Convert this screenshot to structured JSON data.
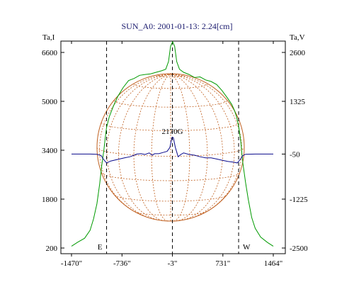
{
  "chart_data": {
    "type": "line",
    "title": "SUN_A0: 2001-01-13: 2.24[cm]",
    "left_axis_label": "Ta,I",
    "right_axis_label": "Ta,V",
    "left_axis": {
      "ticks": [
        200,
        1800,
        3400,
        5000,
        6600
      ],
      "range": [
        200,
        6600
      ]
    },
    "right_axis": {
      "ticks": [
        -2500,
        -1225,
        -50,
        1325,
        2600
      ],
      "range": [
        -2500,
        2600
      ]
    },
    "x_axis": {
      "ticks": [
        "-1470\"",
        "-736\"",
        "-3\"",
        "731\"",
        "1464\""
      ],
      "range": [
        -1470,
        1464
      ]
    },
    "limb_markers": [
      {
        "x": -960,
        "label": "E"
      },
      {
        "x": 960,
        "label": "W"
      }
    ],
    "annotation": {
      "text": "2170G",
      "x": -3
    },
    "colors": {
      "intensity": "#009a00",
      "polarization": "#0a0a8c",
      "grid": "#c06020",
      "title": "#1a1a6e"
    },
    "series": [
      {
        "axis": "left",
        "points": [
          [
            -1470,
            260
          ],
          [
            -1380,
            390
          ],
          [
            -1280,
            520
          ],
          [
            -1200,
            780
          ],
          [
            -1150,
            1150
          ],
          [
            -1100,
            1650
          ],
          [
            -1060,
            2300
          ],
          [
            -1030,
            2900
          ],
          [
            -1000,
            3400
          ],
          [
            -980,
            3800
          ],
          [
            -960,
            4150
          ],
          [
            -920,
            4500
          ],
          [
            -860,
            4850
          ],
          [
            -800,
            5150
          ],
          [
            -720,
            5450
          ],
          [
            -640,
            5680
          ],
          [
            -560,
            5750
          ],
          [
            -480,
            5850
          ],
          [
            -400,
            5880
          ],
          [
            -320,
            5900
          ],
          [
            -240,
            5950
          ],
          [
            -160,
            6000
          ],
          [
            -100,
            6050
          ],
          [
            -60,
            6300
          ],
          [
            -30,
            6800
          ],
          [
            0,
            6950
          ],
          [
            30,
            6800
          ],
          [
            60,
            6300
          ],
          [
            100,
            6050
          ],
          [
            160,
            5950
          ],
          [
            240,
            5880
          ],
          [
            320,
            5780
          ],
          [
            400,
            5800
          ],
          [
            480,
            5700
          ],
          [
            560,
            5650
          ],
          [
            640,
            5550
          ],
          [
            720,
            5350
          ],
          [
            800,
            5100
          ],
          [
            860,
            4900
          ],
          [
            900,
            4700
          ],
          [
            930,
            4500
          ],
          [
            960,
            4200
          ],
          [
            990,
            3700
          ],
          [
            1020,
            3000
          ],
          [
            1060,
            2350
          ],
          [
            1100,
            1800
          ],
          [
            1150,
            1200
          ],
          [
            1200,
            850
          ],
          [
            1280,
            560
          ],
          [
            1380,
            380
          ],
          [
            1464,
            260
          ]
        ]
      },
      {
        "axis": "right",
        "points": [
          [
            -1470,
            -50
          ],
          [
            -1200,
            -50
          ],
          [
            -1100,
            -55
          ],
          [
            -1040,
            -90
          ],
          [
            -1000,
            -200
          ],
          [
            -960,
            -280
          ],
          [
            -900,
            -230
          ],
          [
            -800,
            -190
          ],
          [
            -700,
            -150
          ],
          [
            -620,
            -120
          ],
          [
            -560,
            -80
          ],
          [
            -520,
            -50
          ],
          [
            -460,
            -40
          ],
          [
            -400,
            -60
          ],
          [
            -340,
            -20
          ],
          [
            -300,
            -80
          ],
          [
            -260,
            -40
          ],
          [
            -200,
            -40
          ],
          [
            -140,
            -10
          ],
          [
            -80,
            20
          ],
          [
            -40,
            120
          ],
          [
            -10,
            380
          ],
          [
            10,
            380
          ],
          [
            40,
            120
          ],
          [
            80,
            -120
          ],
          [
            120,
            -60
          ],
          [
            160,
            -20
          ],
          [
            240,
            -60
          ],
          [
            320,
            -80
          ],
          [
            400,
            -120
          ],
          [
            480,
            -150
          ],
          [
            560,
            -150
          ],
          [
            640,
            -180
          ],
          [
            720,
            -210
          ],
          [
            800,
            -240
          ],
          [
            880,
            -260
          ],
          [
            940,
            -280
          ],
          [
            980,
            -200
          ],
          [
            1020,
            -90
          ],
          [
            1060,
            -55
          ],
          [
            1200,
            -50
          ],
          [
            1464,
            -50
          ]
        ]
      }
    ]
  }
}
